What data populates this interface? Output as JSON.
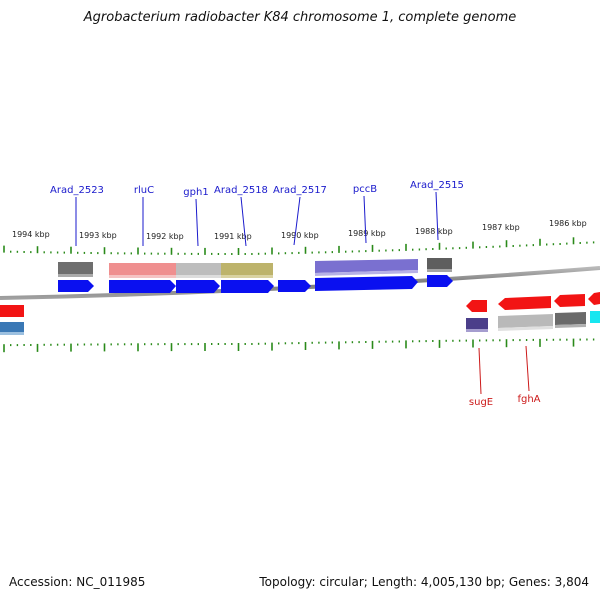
{
  "title": "Agrobacterium radiobacter K84 chromosome 1, complete genome",
  "footer": {
    "accession": "Accession: NC_011985",
    "summary": "Topology: circular; Length: 4,005,130 bp; Genes: 3,804"
  },
  "colors": {
    "forward_cds": "#0a10f0",
    "reverse_cds": "#f21414",
    "tick": "#2a8a1a",
    "forward_label": "#1a1acc",
    "reverse_label": "#cc1a1a",
    "backbone": "#8c8c8c"
  },
  "scale_labels": [
    "1994 kbp",
    "1993 kbp",
    "1992 kbp",
    "1991 kbp",
    "1990 kbp",
    "1989 kbp",
    "1988 kbp",
    "1987 kbp",
    "1986 kbp"
  ],
  "forward_labels": [
    "Arad_2523",
    "rluC",
    "gph1",
    "Arad_2518",
    "Arad_2517",
    "pccB",
    "Arad_2515"
  ],
  "reverse_labels": [
    "sugE",
    "fghA"
  ]
}
